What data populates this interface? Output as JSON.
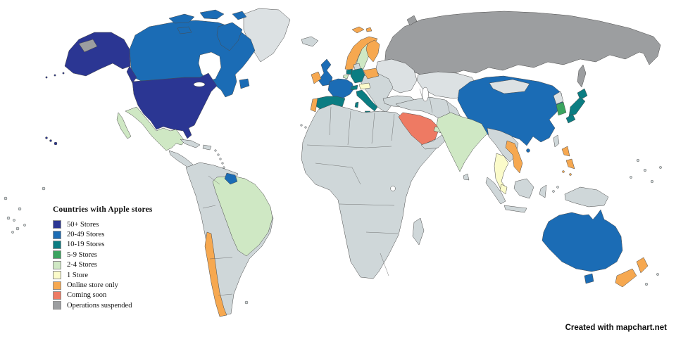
{
  "legend": {
    "title": "Countries with Apple stores",
    "items": [
      {
        "key": "50plus",
        "label": "50+ Stores",
        "color": "#2b3693"
      },
      {
        "key": "20-49",
        "label": "20-49 Stores",
        "color": "#1b6cb5"
      },
      {
        "key": "10-19",
        "label": "10-19 Stores",
        "color": "#0b7d82"
      },
      {
        "key": "5-9",
        "label": "5-9 Stores",
        "color": "#3aa45f"
      },
      {
        "key": "2-4",
        "label": "2-4 Stores",
        "color": "#cfe8c4"
      },
      {
        "key": "1",
        "label": "1 Store",
        "color": "#fbfbca"
      },
      {
        "key": "online",
        "label": "Online store only",
        "color": "#f6a850"
      },
      {
        "key": "coming",
        "label": "Coming soon",
        "color": "#ee7a63"
      },
      {
        "key": "suspended",
        "label": "Operations suspended",
        "color": "#9c9ea0"
      }
    ]
  },
  "map": {
    "default_fill": "#cfd7d9",
    "light_fill": "#dce1e3",
    "ocean_color": "#ffffff",
    "border_color": "#4a4a4a",
    "regions": [
      {
        "id": "united-states",
        "category": "50plus"
      },
      {
        "id": "alaska",
        "category": "50plus"
      },
      {
        "id": "hawaii",
        "category": "50plus"
      },
      {
        "id": "canada",
        "category": "20-49"
      },
      {
        "id": "mexico",
        "category": "2-4"
      },
      {
        "id": "brazil",
        "category": "2-4"
      },
      {
        "id": "guyana",
        "category": "20-49"
      },
      {
        "id": "chile",
        "category": "online"
      },
      {
        "id": "united-kingdom",
        "category": "20-49"
      },
      {
        "id": "ireland",
        "category": "online"
      },
      {
        "id": "france",
        "category": "20-49"
      },
      {
        "id": "spain",
        "category": "10-19"
      },
      {
        "id": "portugal",
        "category": "online"
      },
      {
        "id": "germany",
        "category": "10-19"
      },
      {
        "id": "netherlands",
        "category": "10-19"
      },
      {
        "id": "belgium",
        "category": "2-4"
      },
      {
        "id": "switzerland",
        "category": "10-19"
      },
      {
        "id": "italy",
        "category": "10-19"
      },
      {
        "id": "austria",
        "category": "1"
      },
      {
        "id": "sweden",
        "category": "2-4"
      },
      {
        "id": "norway",
        "category": "online"
      },
      {
        "id": "svalbard",
        "category": "online"
      },
      {
        "id": "finland",
        "category": "online"
      },
      {
        "id": "poland",
        "category": "online"
      },
      {
        "id": "russia",
        "category": "suspended"
      },
      {
        "id": "saudi-arabia",
        "category": "coming"
      },
      {
        "id": "uae",
        "category": "2-4"
      },
      {
        "id": "india",
        "category": "2-4"
      },
      {
        "id": "china",
        "category": "20-49"
      },
      {
        "id": "japan",
        "category": "10-19"
      },
      {
        "id": "south-korea",
        "category": "5-9"
      },
      {
        "id": "thailand",
        "category": "1"
      },
      {
        "id": "malaysia",
        "category": "1"
      },
      {
        "id": "vietnam",
        "category": "online"
      },
      {
        "id": "philippines",
        "category": "online"
      },
      {
        "id": "australia",
        "category": "20-49"
      },
      {
        "id": "new-zealand",
        "category": "online"
      },
      {
        "id": "greenland",
        "category": "default-light"
      },
      {
        "id": "kazakhstan",
        "category": "default-light"
      },
      {
        "id": "mongolia",
        "category": "default-light"
      },
      {
        "id": "east-europe",
        "category": "default-light"
      },
      {
        "id": "north-korea",
        "category": "default-light"
      }
    ]
  },
  "attribution": {
    "text": "Created with mapchart.net"
  }
}
